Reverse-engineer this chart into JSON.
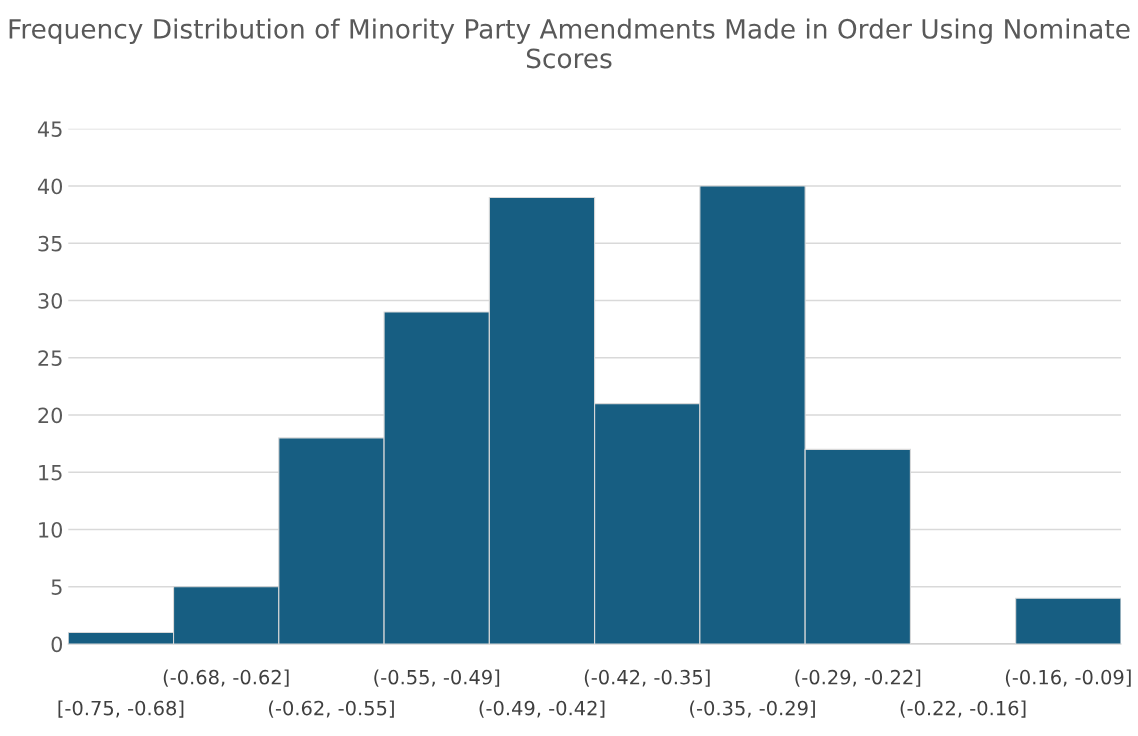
{
  "chart_data": {
    "type": "bar",
    "title": "Frequency Distribution of Minority Party Amendments Made in Order Using Nominate Scores",
    "categories": [
      "[-0.75, -0.68]",
      "(-0.68, -0.62]",
      "(-0.62, -0.55]",
      "(-0.55, -0.49]",
      "(-0.49, -0.42]",
      "(-0.42, -0.35]",
      "(-0.35, -0.29]",
      "(-0.29, -0.22]",
      "(-0.22, -0.16]",
      "(-0.16, -0.09]"
    ],
    "values": [
      1,
      5,
      18,
      29,
      39,
      21,
      40,
      17,
      0,
      4
    ],
    "color": "#175e82",
    "ylim": [
      0,
      45
    ],
    "yticks": [
      0,
      5,
      10,
      15,
      20,
      25,
      30,
      35,
      40,
      45
    ],
    "grid": "y",
    "legend": false
  }
}
